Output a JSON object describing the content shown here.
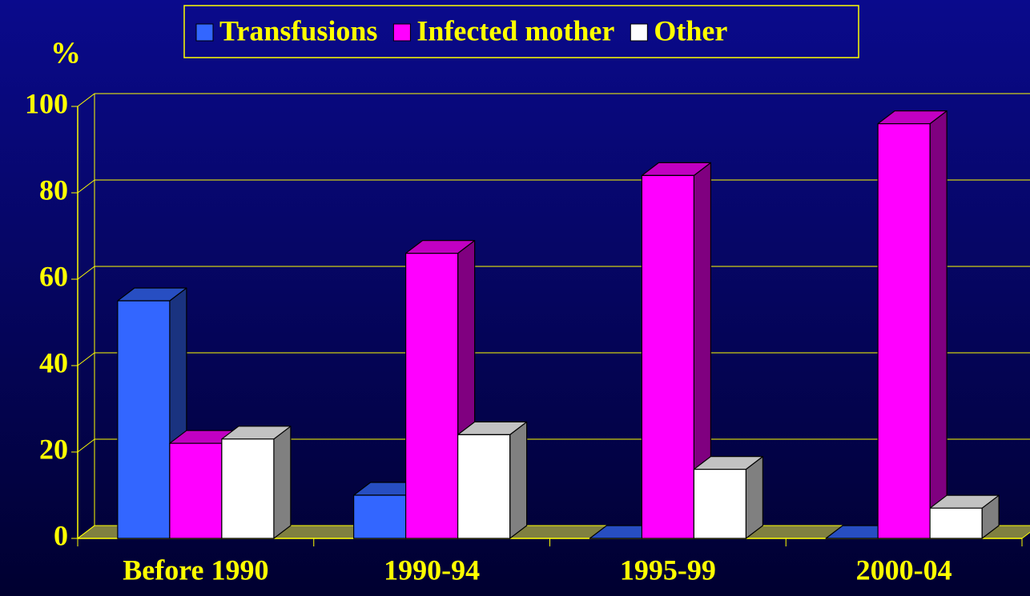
{
  "chart_data": {
    "type": "bar3d",
    "y_label": "%",
    "categories": [
      "Before 1990",
      "1990-94",
      "1995-99",
      "2000-04"
    ],
    "series": [
      {
        "name": "Transfusions",
        "color": "#3366ff",
        "values": [
          55,
          10,
          0,
          0
        ]
      },
      {
        "name": "Infected mother",
        "color": "#ff00ff",
        "values": [
          22,
          66,
          84,
          96
        ]
      },
      {
        "name": "Other",
        "color": "#ffffff",
        "values": [
          23,
          24,
          16,
          7
        ]
      }
    ],
    "ylim": [
      0,
      100
    ],
    "yticks": [
      0,
      20,
      40,
      60,
      80,
      100
    ],
    "grid": true
  }
}
